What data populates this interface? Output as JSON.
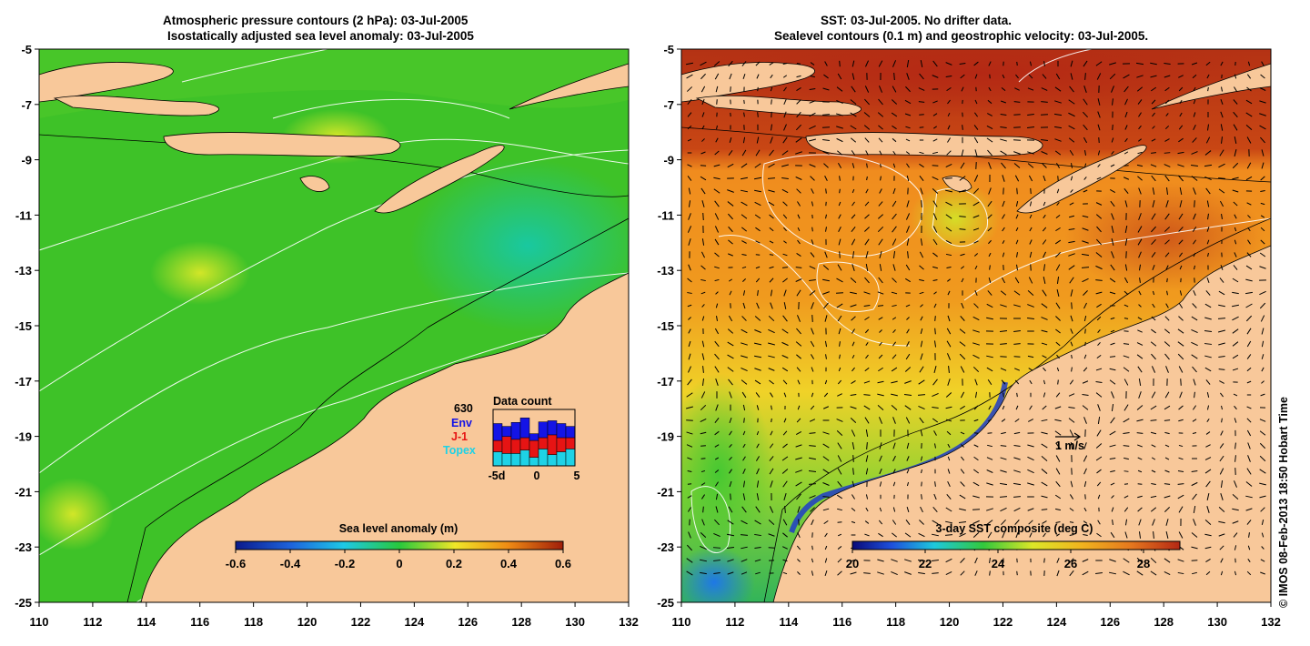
{
  "left_panel": {
    "title_line1": "Atmospheric pressure contours (2 hPa): 03-Jul-2005",
    "title_line2": "Isostatically adjusted sea level anomaly: 03-Jul-2005",
    "colorbar": {
      "title": "Sea level anomaly (m)",
      "range": [
        -0.6,
        0.6
      ],
      "tick_labels": [
        "-0.6",
        "-0.4",
        "-0.2",
        "0",
        "0.2",
        "0.4",
        "0.6"
      ]
    },
    "data_count": {
      "title": "Data count",
      "total": "630",
      "legend": [
        {
          "label": "Env",
          "color": "#1414e6"
        },
        {
          "label": "J-1",
          "color": "#e61414"
        },
        {
          "label": "Topex",
          "color": "#1ed2e6"
        }
      ],
      "x_labels": [
        "-5d",
        "0",
        "5"
      ],
      "days": [
        -4,
        -3,
        -2,
        -1,
        0,
        1,
        2,
        3,
        4
      ],
      "topex": [
        0.25,
        0.22,
        0.22,
        0.28,
        0.15,
        0.3,
        0.2,
        0.25,
        0.3
      ],
      "j1": [
        0.2,
        0.3,
        0.25,
        0.22,
        0.3,
        0.2,
        0.35,
        0.25,
        0.2
      ],
      "env": [
        0.3,
        0.18,
        0.3,
        0.35,
        0.12,
        0.28,
        0.25,
        0.25,
        0.2
      ]
    }
  },
  "right_panel": {
    "title_line1": "SST: 03-Jul-2005. No drifter data.",
    "title_line2": "Sealevel contours (0.1 m) and geostrophic velocity: 03-Jul-2005.",
    "colorbar": {
      "title": "3-day SST composite (deg C)",
      "range": [
        20,
        29
      ],
      "tick_labels": [
        "20",
        "22",
        "24",
        "26",
        "28"
      ]
    },
    "velocity_scale_label": "1 m/s"
  },
  "axes": {
    "lon_labels": [
      "110",
      "112",
      "114",
      "116",
      "118",
      "120",
      "122",
      "124",
      "126",
      "128",
      "130",
      "132"
    ],
    "lat_labels": [
      "-5",
      "-7",
      "-9",
      "-11",
      "-13",
      "-15",
      "-17",
      "-19",
      "-21",
      "-23",
      "-25"
    ]
  },
  "colors": {
    "land": "#f8c89a",
    "sla_background": "#3ec228",
    "sst_background": "#f08a18"
  },
  "credit": "© IMOS 08-Feb-2013 18:50 Hobart Time"
}
